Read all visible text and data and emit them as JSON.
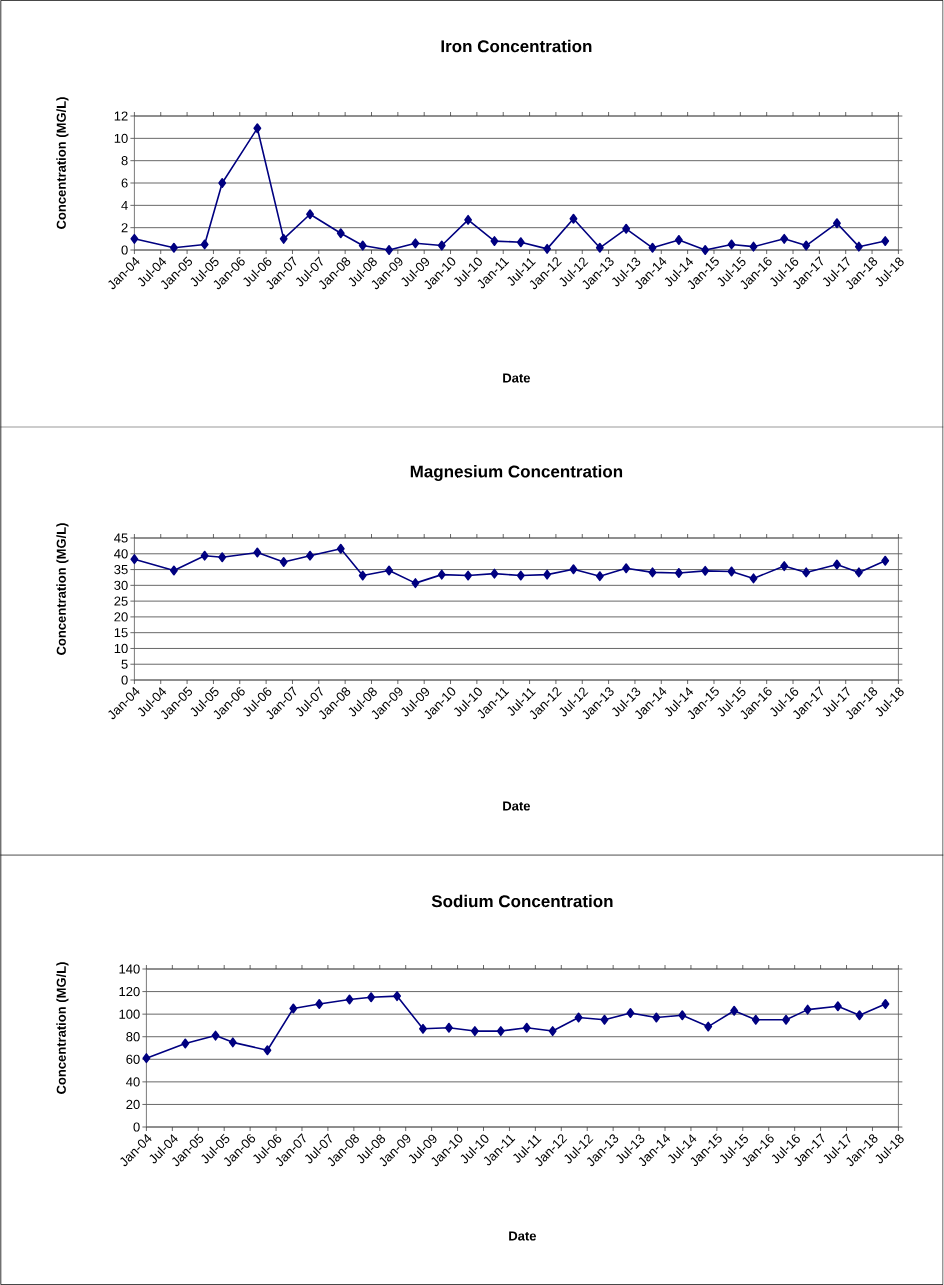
{
  "chart_data": [
    {
      "type": "line",
      "title": "Iron Concentration",
      "xlabel": "Date",
      "ylabel": "Concentration (MG/L)",
      "marker": "diamond",
      "line_style": "solid",
      "grid": "y",
      "x": [
        "2004-01",
        "2004-10",
        "2005-05",
        "2005-09",
        "2006-05",
        "2006-11",
        "2007-05",
        "2007-12",
        "2008-05",
        "2008-11",
        "2009-05",
        "2009-11",
        "2010-05",
        "2010-11",
        "2011-05",
        "2011-11",
        "2012-05",
        "2012-11",
        "2013-05",
        "2013-11",
        "2014-05",
        "2014-11",
        "2015-05",
        "2015-10",
        "2016-05",
        "2016-10",
        "2017-05",
        "2017-10",
        "2018-04"
      ],
      "series": [
        {
          "color": "#000080",
          "values": [
            1.0,
            0.2,
            0.5,
            6.0,
            10.9,
            1.0,
            3.2,
            1.5,
            0.4,
            0,
            0.6,
            0.4,
            2.7,
            0.8,
            0.7,
            0.1,
            2.8,
            0.2,
            1.9,
            0.2,
            0.9,
            0,
            0.5,
            0.3,
            1.0,
            0.4,
            2.4,
            0.3,
            0.8
          ]
        }
      ],
      "ylim": [
        0,
        12
      ],
      "yticks": [
        0,
        2,
        4,
        6,
        8,
        10,
        12
      ],
      "xlim": [
        "2004-01",
        "2018-07"
      ],
      "xticks": [
        {
          "value": "2004-01",
          "label": "Jan-04"
        },
        {
          "value": "2004-07",
          "label": "Jul-04"
        },
        {
          "value": "2005-01",
          "label": "Jan-05"
        },
        {
          "value": "2005-07",
          "label": "Jul-05"
        },
        {
          "value": "2006-01",
          "label": "Jan-06"
        },
        {
          "value": "2006-07",
          "label": "Jul-06"
        },
        {
          "value": "2007-01",
          "label": "Jan-07"
        },
        {
          "value": "2007-07",
          "label": "Jul-07"
        },
        {
          "value": "2008-01",
          "label": "Jan-08"
        },
        {
          "value": "2008-07",
          "label": "Jul-08"
        },
        {
          "value": "2009-01",
          "label": "Jan-09"
        },
        {
          "value": "2009-07",
          "label": "Jul-09"
        },
        {
          "value": "2010-01",
          "label": "Jan-10"
        },
        {
          "value": "2010-07",
          "label": "Jul-10"
        },
        {
          "value": "2011-01",
          "label": "Jan-11"
        },
        {
          "value": "2011-07",
          "label": "Jul-11"
        },
        {
          "value": "2012-01",
          "label": "Jan-12"
        },
        {
          "value": "2012-07",
          "label": "Jul-12"
        },
        {
          "value": "2013-01",
          "label": "Jan-13"
        },
        {
          "value": "2013-07",
          "label": "Jul-13"
        },
        {
          "value": "2014-01",
          "label": "Jan-14"
        },
        {
          "value": "2014-07",
          "label": "Jul-14"
        },
        {
          "value": "2015-01",
          "label": "Jan-15"
        },
        {
          "value": "2015-07",
          "label": "Jul-15"
        },
        {
          "value": "2016-01",
          "label": "Jan-16"
        },
        {
          "value": "2016-07",
          "label": "Jul-16"
        },
        {
          "value": "2017-01",
          "label": "Jan-17"
        },
        {
          "value": "2017-07",
          "label": "Jul-17"
        },
        {
          "value": "2018-01",
          "label": "Jan-18"
        },
        {
          "value": "2018-07",
          "label": "Jul-18"
        }
      ]
    },
    {
      "type": "line",
      "title": "Magnesium Concentration",
      "xlabel": "Date",
      "ylabel": "Concentration (MG/L)",
      "marker": "diamond",
      "line_style": "solid",
      "grid": "y",
      "x": [
        "2004-01",
        "2004-10",
        "2005-05",
        "2005-09",
        "2006-05",
        "2006-11",
        "2007-05",
        "2007-12",
        "2008-05",
        "2008-11",
        "2009-05",
        "2009-11",
        "2010-05",
        "2010-11",
        "2011-05",
        "2011-11",
        "2012-05",
        "2012-11",
        "2013-05",
        "2013-11",
        "2014-05",
        "2014-11",
        "2015-05",
        "2015-10",
        "2016-05",
        "2016-10",
        "2017-05",
        "2017-10",
        "2018-04"
      ],
      "series": [
        {
          "color": "#000080",
          "values": [
            38.3,
            34.7,
            39.4,
            38.9,
            40.4,
            37.4,
            39.4,
            41.6,
            33.1,
            34.7,
            30.7,
            33.4,
            33.1,
            33.7,
            33.1,
            33.4,
            35.1,
            32.9,
            35.4,
            34.1,
            33.9,
            34.6,
            34.4,
            32.2,
            36.1,
            34.1,
            36.6,
            34.1,
            37.8
          ]
        }
      ],
      "ylim": [
        0,
        45
      ],
      "yticks": [
        0,
        5,
        10,
        15,
        20,
        25,
        30,
        35,
        40,
        45
      ],
      "xlim": [
        "2004-01",
        "2018-07"
      ],
      "xticks": [
        {
          "value": "2004-01",
          "label": "Jan-04"
        },
        {
          "value": "2004-07",
          "label": "Jul-04"
        },
        {
          "value": "2005-01",
          "label": "Jan-05"
        },
        {
          "value": "2005-07",
          "label": "Jul-05"
        },
        {
          "value": "2006-01",
          "label": "Jan-06"
        },
        {
          "value": "2006-07",
          "label": "Jul-06"
        },
        {
          "value": "2007-01",
          "label": "Jan-07"
        },
        {
          "value": "2007-07",
          "label": "Jul-07"
        },
        {
          "value": "2008-01",
          "label": "Jan-08"
        },
        {
          "value": "2008-07",
          "label": "Jul-08"
        },
        {
          "value": "2009-01",
          "label": "Jan-09"
        },
        {
          "value": "2009-07",
          "label": "Jul-09"
        },
        {
          "value": "2010-01",
          "label": "Jan-10"
        },
        {
          "value": "2010-07",
          "label": "Jul-10"
        },
        {
          "value": "2011-01",
          "label": "Jan-11"
        },
        {
          "value": "2011-07",
          "label": "Jul-11"
        },
        {
          "value": "2012-01",
          "label": "Jan-12"
        },
        {
          "value": "2012-07",
          "label": "Jul-12"
        },
        {
          "value": "2013-01",
          "label": "Jan-13"
        },
        {
          "value": "2013-07",
          "label": "Jul-13"
        },
        {
          "value": "2014-01",
          "label": "Jan-14"
        },
        {
          "value": "2014-07",
          "label": "Jul-14"
        },
        {
          "value": "2015-01",
          "label": "Jan-15"
        },
        {
          "value": "2015-07",
          "label": "Jul-15"
        },
        {
          "value": "2016-01",
          "label": "Jan-16"
        },
        {
          "value": "2016-07",
          "label": "Jul-16"
        },
        {
          "value": "2017-01",
          "label": "Jan-17"
        },
        {
          "value": "2017-07",
          "label": "Jul-17"
        },
        {
          "value": "2018-01",
          "label": "Jan-18"
        },
        {
          "value": "2018-07",
          "label": "Jul-18"
        }
      ]
    },
    {
      "type": "line",
      "title": "Sodium Concentration",
      "xlabel": "Date",
      "ylabel": "Concentration (MG/L)",
      "marker": "diamond",
      "line_style": "solid",
      "grid": "y",
      "x": [
        "2004-01",
        "2004-10",
        "2005-05",
        "2005-09",
        "2006-05",
        "2006-11",
        "2007-05",
        "2007-12",
        "2008-05",
        "2008-11",
        "2009-05",
        "2009-11",
        "2010-05",
        "2010-11",
        "2011-05",
        "2011-11",
        "2012-05",
        "2012-11",
        "2013-05",
        "2013-11",
        "2014-05",
        "2014-11",
        "2015-05",
        "2015-10",
        "2016-05",
        "2016-10",
        "2017-05",
        "2017-10",
        "2018-04"
      ],
      "series": [
        {
          "color": "#000080",
          "values": [
            61,
            74,
            81,
            75,
            68,
            105,
            109,
            113,
            115,
            116,
            87,
            88,
            85,
            85,
            88,
            85,
            97,
            95,
            101,
            97,
            99,
            89,
            103,
            95,
            95,
            104,
            107,
            99,
            109
          ]
        }
      ],
      "ylim": [
        0,
        140
      ],
      "yticks": [
        0,
        20,
        40,
        60,
        80,
        100,
        120,
        140
      ],
      "xlim": [
        "2004-01",
        "2018-07"
      ],
      "xticks": [
        {
          "value": "2004-01",
          "label": "Jan-04"
        },
        {
          "value": "2004-07",
          "label": "Jul-04"
        },
        {
          "value": "2005-01",
          "label": "Jan-05"
        },
        {
          "value": "2005-07",
          "label": "Jul-05"
        },
        {
          "value": "2006-01",
          "label": "Jan-06"
        },
        {
          "value": "2006-07",
          "label": "Jul-06"
        },
        {
          "value": "2007-01",
          "label": "Jan-07"
        },
        {
          "value": "2007-07",
          "label": "Jul-07"
        },
        {
          "value": "2008-01",
          "label": "Jan-08"
        },
        {
          "value": "2008-07",
          "label": "Jul-08"
        },
        {
          "value": "2009-01",
          "label": "Jan-09"
        },
        {
          "value": "2009-07",
          "label": "Jul-09"
        },
        {
          "value": "2010-01",
          "label": "Jan-10"
        },
        {
          "value": "2010-07",
          "label": "Jul-10"
        },
        {
          "value": "2011-01",
          "label": "Jan-11"
        },
        {
          "value": "2011-07",
          "label": "Jul-11"
        },
        {
          "value": "2012-01",
          "label": "Jan-12"
        },
        {
          "value": "2012-07",
          "label": "Jul-12"
        },
        {
          "value": "2013-01",
          "label": "Jan-13"
        },
        {
          "value": "2013-07",
          "label": "Jul-13"
        },
        {
          "value": "2014-01",
          "label": "Jan-14"
        },
        {
          "value": "2014-07",
          "label": "Jul-14"
        },
        {
          "value": "2015-01",
          "label": "Jan-15"
        },
        {
          "value": "2015-07",
          "label": "Jul-15"
        },
        {
          "value": "2016-01",
          "label": "Jan-16"
        },
        {
          "value": "2016-07",
          "label": "Jul-16"
        },
        {
          "value": "2017-01",
          "label": "Jan-17"
        },
        {
          "value": "2017-07",
          "label": "Jul-17"
        },
        {
          "value": "2018-01",
          "label": "Jan-18"
        },
        {
          "value": "2018-07",
          "label": "Jul-18"
        }
      ]
    }
  ]
}
